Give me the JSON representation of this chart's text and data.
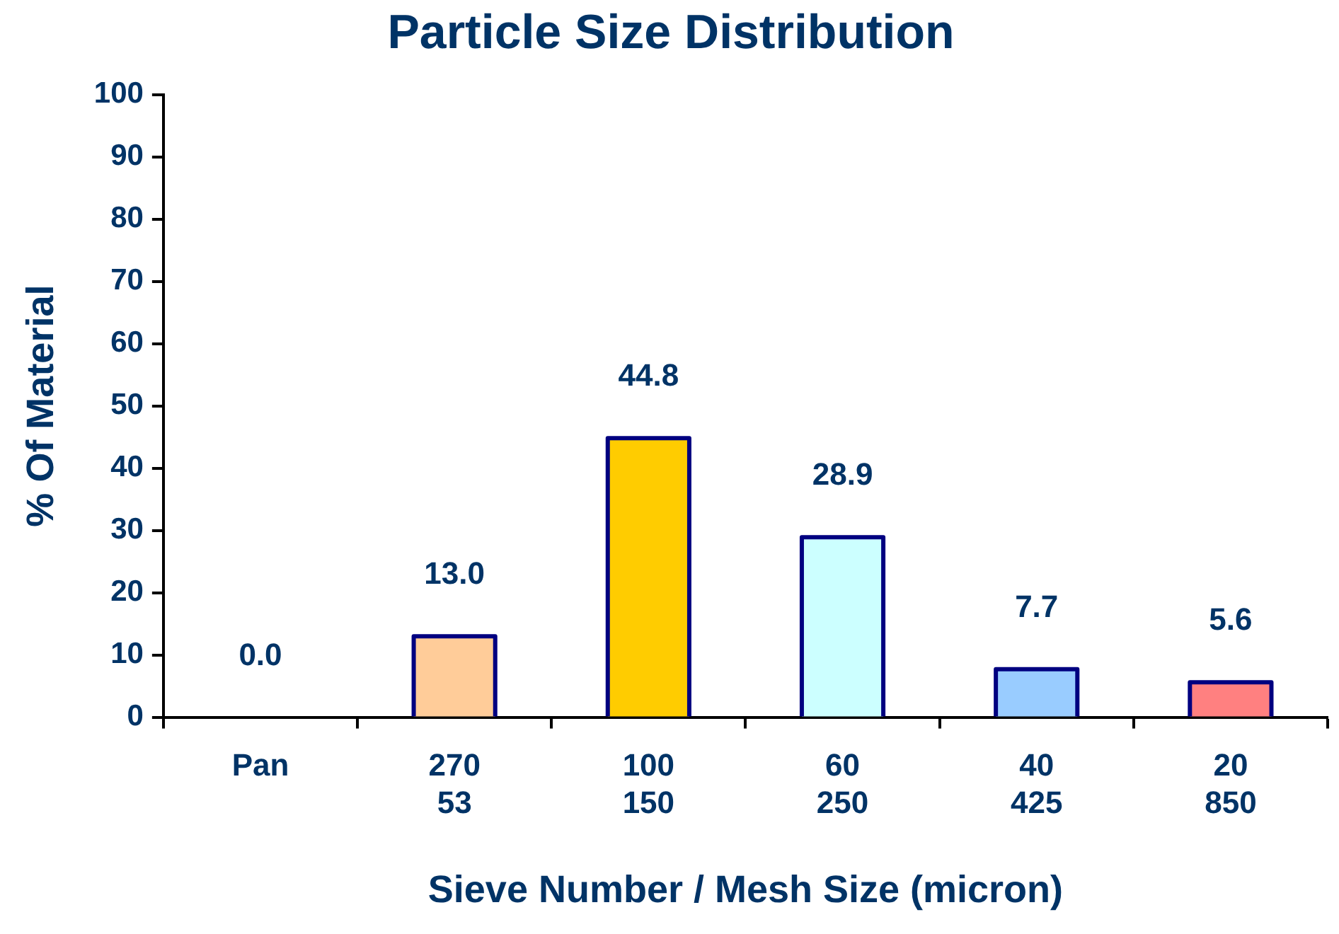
{
  "chart_data": {
    "type": "bar",
    "title": "Particle Size Distribution",
    "xlabel": "Sieve Number / Mesh Size (micron)",
    "ylabel": "% Of Material",
    "categories": [
      "Pan",
      "270\n53",
      "100\n150",
      "60\n250",
      "40\n425",
      "20\n850"
    ],
    "values": [
      0.0,
      13.0,
      44.8,
      28.9,
      7.7,
      5.6
    ],
    "colors": [
      "#ffcc99",
      "#ffcc99",
      "#ffcc00",
      "#ccffff",
      "#99ccff",
      "#ff8080"
    ],
    "value_labels": [
      "0.0",
      "13.0",
      "44.8",
      "28.9",
      "7.7",
      "5.6"
    ],
    "ylim": [
      0,
      100
    ],
    "yticks": [
      0,
      10,
      20,
      30,
      40,
      50,
      60,
      70,
      80,
      90,
      100
    ],
    "grid": false,
    "legend": false
  }
}
